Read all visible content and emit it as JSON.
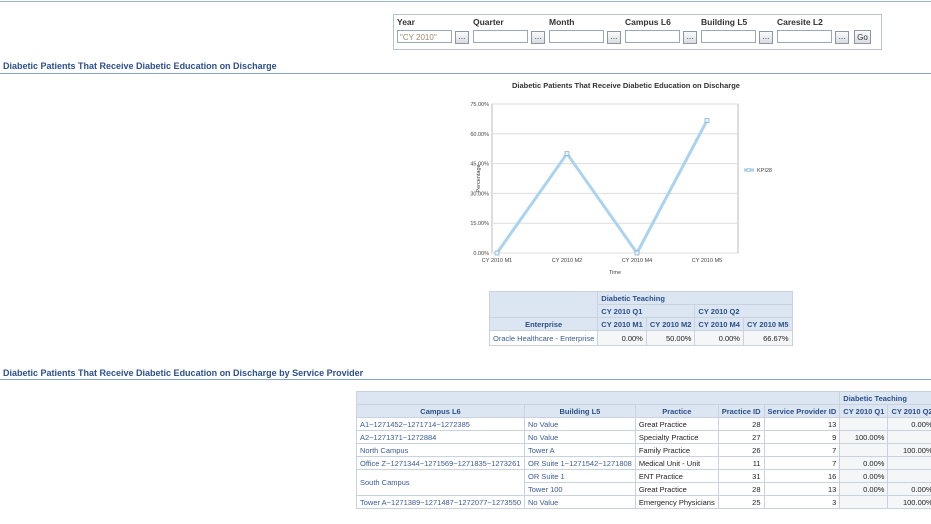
{
  "filters": {
    "items": [
      {
        "label": "Year",
        "value": "\"CY 2010\""
      },
      {
        "label": "Quarter"
      },
      {
        "label": "Month"
      },
      {
        "label": "Campus L6"
      },
      {
        "label": "Building L5"
      },
      {
        "label": "Caresite L2"
      }
    ],
    "browse_button": "...",
    "go_button": "Go"
  },
  "section_1": {
    "title": "Diabetic Patients That Receive Diabetic Education on Discharge"
  },
  "chart_data": {
    "type": "line",
    "title": "Diabetic Patients That Receive Diabetic Education on Discharge",
    "x_label": "Time",
    "y_label": "Percentage",
    "categories": [
      "CY 2010 M1",
      "CY 2010 M2",
      "CY 2010 M4",
      "CY 2010 M5"
    ],
    "series": [
      {
        "name": "KPI28",
        "color": "#a9d3f0",
        "values": [
          0,
          50,
          0,
          66.67
        ]
      }
    ],
    "ylim": [
      0,
      75
    ],
    "yticks": [
      {
        "value": 0,
        "label": "0.00%"
      },
      {
        "value": 15,
        "label": "15.00%"
      },
      {
        "value": 30,
        "label": "30.00%"
      },
      {
        "value": 45,
        "label": "45.00%"
      },
      {
        "value": 60,
        "label": "60.00%"
      },
      {
        "value": 75,
        "label": "75.00%"
      }
    ],
    "grid": true,
    "legend": "right"
  },
  "summary_table": {
    "measure": "Diabetic Teaching",
    "quarters": [
      "CY 2010 Q1",
      "CY 2010 Q2"
    ],
    "row_header": "Enterprise",
    "months": [
      "CY 2010 M1",
      "CY 2010 M2",
      "CY 2010 M4",
      "CY 2010 M5"
    ],
    "row_label": "Oracle Healthcare - Enterprise",
    "cells": [
      "0.00%",
      "50.00%",
      "0.00%",
      "66.67%"
    ]
  },
  "section_2": {
    "title": "Diabetic Patients That Receive Diabetic Education on Discharge by Service Provider"
  },
  "detail_table": {
    "measure": "Diabetic Teaching",
    "columns": [
      "Campus L6",
      "Building L5",
      "Practice",
      "Practice ID",
      "Service Provider ID",
      "CY 2010 Q1",
      "CY 2010 Q2"
    ],
    "rows": [
      [
        "A1~1271452~1271714~1272385",
        "No Value",
        "Great Practice",
        "28",
        "13",
        null,
        "0.00%"
      ],
      [
        "A2~1271371~1272884",
        "No Value",
        "Specialty Practice",
        "27",
        "9",
        "100.00%",
        null
      ],
      [
        "North Campus",
        "Tower A",
        "Family Practice",
        "26",
        "7",
        null,
        "100.00%"
      ],
      [
        "Office Z~1271344~1271569~1271835~1273261",
        "OR Suite 1~1271542~1271808",
        "Medical Unit - Unit",
        "11",
        "7",
        "0.00%",
        null
      ],
      [
        "South Campus",
        "OR Suite 1",
        "ENT Practice",
        "31",
        "16",
        "0.00%",
        null
      ],
      [
        null,
        "Tower 100",
        "Great Practice",
        "28",
        "13",
        "0.00%",
        "0.00%"
      ],
      [
        "Tower A~1271389~1271487~1272077~1273550",
        "No Value",
        "Emergency Physicians",
        "25",
        "3",
        null,
        "100.00%"
      ]
    ]
  }
}
